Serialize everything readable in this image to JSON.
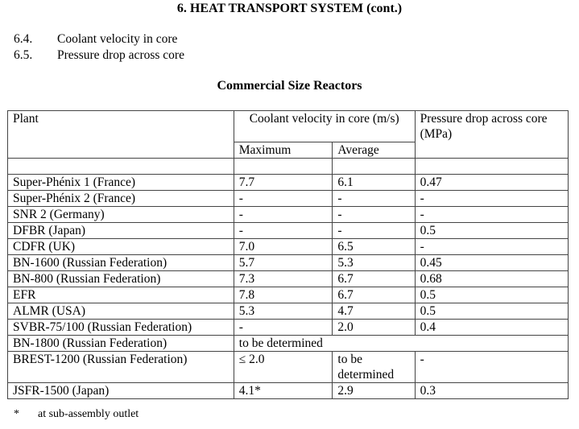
{
  "heading": "6. HEAT TRANSPORT SYSTEM (cont.)",
  "sections": [
    {
      "num": "6.4.",
      "text": "Coolant velocity in core"
    },
    {
      "num": "6.5.",
      "text": "Pressure drop across core"
    }
  ],
  "subtitle": "Commercial Size Reactors",
  "table": {
    "header": {
      "plant": "Plant",
      "velocity": "Coolant velocity in core (m/s)",
      "pressure": "Pressure drop across core (MPa)",
      "maximum": "Maximum",
      "average": "Average"
    },
    "rows": [
      {
        "plant": "Super-Phénix 1 (France)",
        "max": "7.7",
        "avg": "6.1",
        "pressure": "0.47"
      },
      {
        "plant": "Super-Phénix 2 (France)",
        "max": "-",
        "avg": "-",
        "pressure": "-"
      },
      {
        "plant": "SNR 2 (Germany)",
        "max": "-",
        "avg": "-",
        "pressure": "-"
      },
      {
        "plant": "DFBR (Japan)",
        "max": "-",
        "avg": "-",
        "pressure": "0.5"
      },
      {
        "plant": "CDFR (UK)",
        "max": "7.0",
        "avg": "6.5",
        "pressure": "-"
      },
      {
        "plant": "BN-1600 (Russian Federation)",
        "max": "5.7",
        "avg": "5.3",
        "pressure": "0.45"
      },
      {
        "plant": "BN-800 (Russian Federation)",
        "max": "7.3",
        "avg": "6.7",
        "pressure": "0.68"
      },
      {
        "plant": "EFR",
        "max": "7.8",
        "avg": "6.7",
        "pressure": "0.5"
      },
      {
        "plant": "ALMR (USA)",
        "max": "5.3",
        "avg": "4.7",
        "pressure": "0.5"
      },
      {
        "plant": "SVBR-75/100 (Russian Federation)",
        "max": "-",
        "avg": "2.0",
        "pressure": "0.4"
      }
    ],
    "bn1800": {
      "plant": "BN-1800 (Russian Federation)",
      "note": "to be determined"
    },
    "brest": {
      "plant": "BREST-1200 (Russian Federation)",
      "max": "≤ 2.0",
      "avg": "to be determined",
      "pressure": "-"
    },
    "jsfr": {
      "plant": "JSFR-1500 (Japan)",
      "max": "4.1*",
      "avg": "2.9",
      "pressure": "0.3"
    }
  },
  "footnote": {
    "mark": "*",
    "text": "at sub-assembly outlet"
  }
}
